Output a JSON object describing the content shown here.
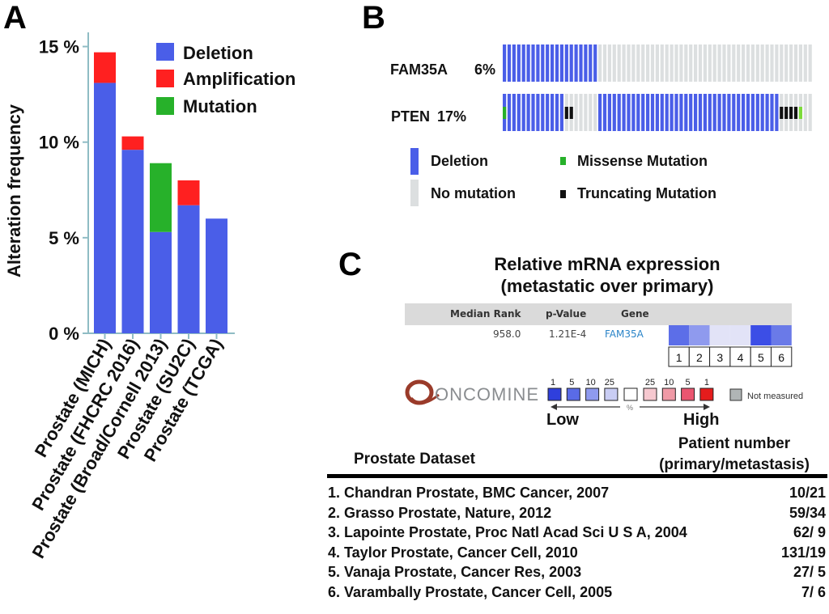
{
  "panel_a": {
    "label": "A",
    "legend": [
      {
        "name": "Deletion",
        "color": "#4a5ee8"
      },
      {
        "name": "Amplification",
        "color": "#ff2020"
      },
      {
        "name": "Mutation",
        "color": "#27b12a"
      }
    ]
  },
  "panel_b": {
    "label": "B",
    "genes": [
      {
        "name": "FAM35A",
        "pct": "6%"
      },
      {
        "name": "PTEN",
        "pct": "17%"
      }
    ],
    "legend": [
      {
        "name": "Deletion",
        "color": "#4a5ee8"
      },
      {
        "name": "Missense Mutation",
        "color": "#27b12a"
      },
      {
        "name": "No mutation",
        "color": "#dcdfe0"
      },
      {
        "name": "Truncating Mutation",
        "color": "#111111"
      }
    ]
  },
  "panel_c": {
    "label": "C",
    "title_line1": "Relative mRNA expression",
    "title_line2": "(metastatic over primary)",
    "oncomine": {
      "headers": {
        "median_rank": "Median Rank",
        "p_value": "p-Value",
        "gene": "Gene"
      },
      "row": {
        "median_rank": "958.0",
        "p_value": "1.21E-4",
        "gene": "FAM35A"
      },
      "dataset_numbers": [
        "1",
        "2",
        "3",
        "4",
        "5",
        "6"
      ],
      "cell_colors": [
        "#5c6ee8",
        "#8f9aee",
        "#e2e3f7",
        "#e2e3f7",
        "#3c4ee6",
        "#6a7ae8"
      ],
      "logo_text": "ONCOMINE",
      "scale_numbers_low": [
        "1",
        "5",
        "10",
        "25"
      ],
      "scale_numbers_high": [
        "25",
        "10",
        "5",
        "1"
      ],
      "scale_colors_low": [
        "#2f3fdc",
        "#5a6be6",
        "#8f9aee",
        "#c9cdf4"
      ],
      "scale_colors_high": [
        "#f6c8cf",
        "#f09aa6",
        "#ea5670",
        "#e51c1c"
      ],
      "pct_symbol": "%",
      "not_measured": "Not measured",
      "low_label": "Low",
      "high_label": "High"
    },
    "table": {
      "col_dataset": "Prostate Dataset",
      "col_patients_line1": "Patient number",
      "col_patients_line2": "(primary/metastasis)",
      "rows": [
        {
          "dataset": "1. Chandran Prostate, BMC Cancer, 2007",
          "patients": "10/21"
        },
        {
          "dataset": "2. Grasso Prostate, Nature, 2012",
          "patients": "59/34"
        },
        {
          "dataset": "3. Lapointe Prostate, Proc Natl Acad Sci U S A, 2004",
          "patients": "62/ 9"
        },
        {
          "dataset": "4. Taylor Prostate, Cancer Cell, 2010",
          "patients": "131/19"
        },
        {
          "dataset": "5. Vanaja Prostate, Cancer Res, 2003",
          "patients": "27/ 5"
        },
        {
          "dataset": "6. Varambally Prostate, Cancer Cell, 2005",
          "patients": "7/ 6"
        }
      ]
    }
  },
  "chart_data": {
    "type": "bar",
    "stacked": true,
    "title": "",
    "ylabel": "Alteration frequency",
    "xlabel": "",
    "ylim": [
      0,
      16
    ],
    "yticks": [
      "0 %",
      "5 %",
      "10 %",
      "15 %"
    ],
    "ytick_values": [
      0,
      5,
      10,
      15
    ],
    "categories": [
      "Prostate (MICH)",
      "Prostate (FHCRC 2016)",
      "Prostate (Broad/Cornell 2013)",
      "Prostate (SU2C)",
      "Prostate (TCGA)"
    ],
    "series": [
      {
        "name": "Deletion",
        "color": "#4a5ee8",
        "values": [
          13.1,
          9.6,
          5.3,
          6.7,
          6.0
        ]
      },
      {
        "name": "Mutation",
        "color": "#27b12a",
        "values": [
          0,
          0,
          3.6,
          0,
          0
        ]
      },
      {
        "name": "Amplification",
        "color": "#ff2020",
        "values": [
          1.6,
          0.7,
          0,
          1.3,
          0
        ]
      }
    ],
    "legend_position": "top-right",
    "grid": false
  }
}
